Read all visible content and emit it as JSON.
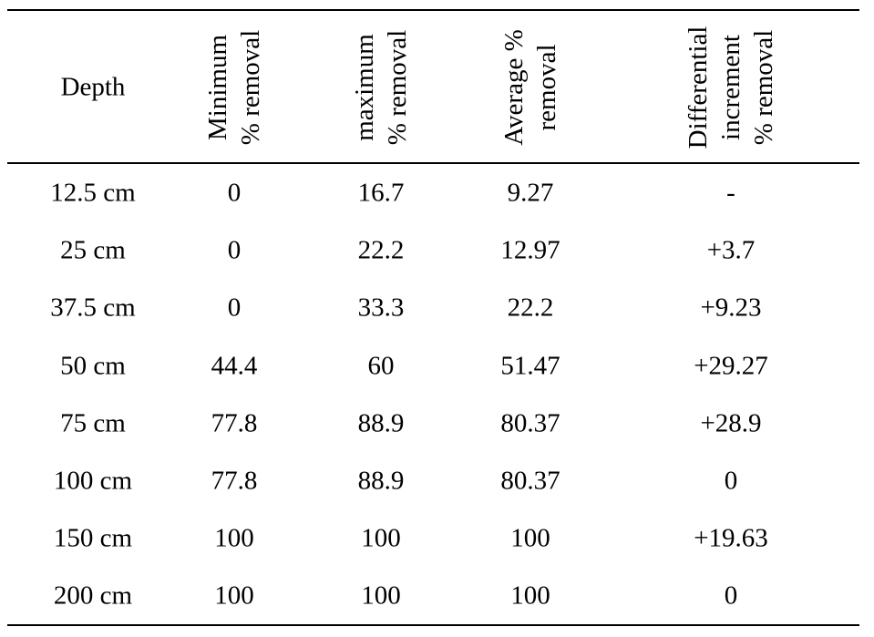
{
  "table": {
    "headers": {
      "depth": "Depth",
      "minimum": [
        "Minimum",
        "% removal"
      ],
      "maximum": [
        "maximum",
        "% removal"
      ],
      "average": [
        "Average %",
        "removal"
      ],
      "differential": [
        "Differential",
        "increment",
        "% removal"
      ]
    },
    "rows": [
      [
        "12.5 cm",
        "0",
        "16.7",
        "9.27",
        "-"
      ],
      [
        "25 cm",
        "0",
        "22.2",
        "12.97",
        "+3.7"
      ],
      [
        "37.5 cm",
        "0",
        "33.3",
        "22.2",
        "+9.23"
      ],
      [
        "50 cm",
        "44.4",
        "60",
        "51.47",
        "+29.27"
      ],
      [
        "75 cm",
        "77.8",
        "88.9",
        "80.37",
        "+28.9"
      ],
      [
        "100 cm",
        "77.8",
        "88.9",
        "80.37",
        "0"
      ],
      [
        "150 cm",
        "100",
        "100",
        "100",
        "+19.63"
      ],
      [
        "200 cm",
        "100",
        "100",
        "100",
        "0"
      ]
    ]
  }
}
